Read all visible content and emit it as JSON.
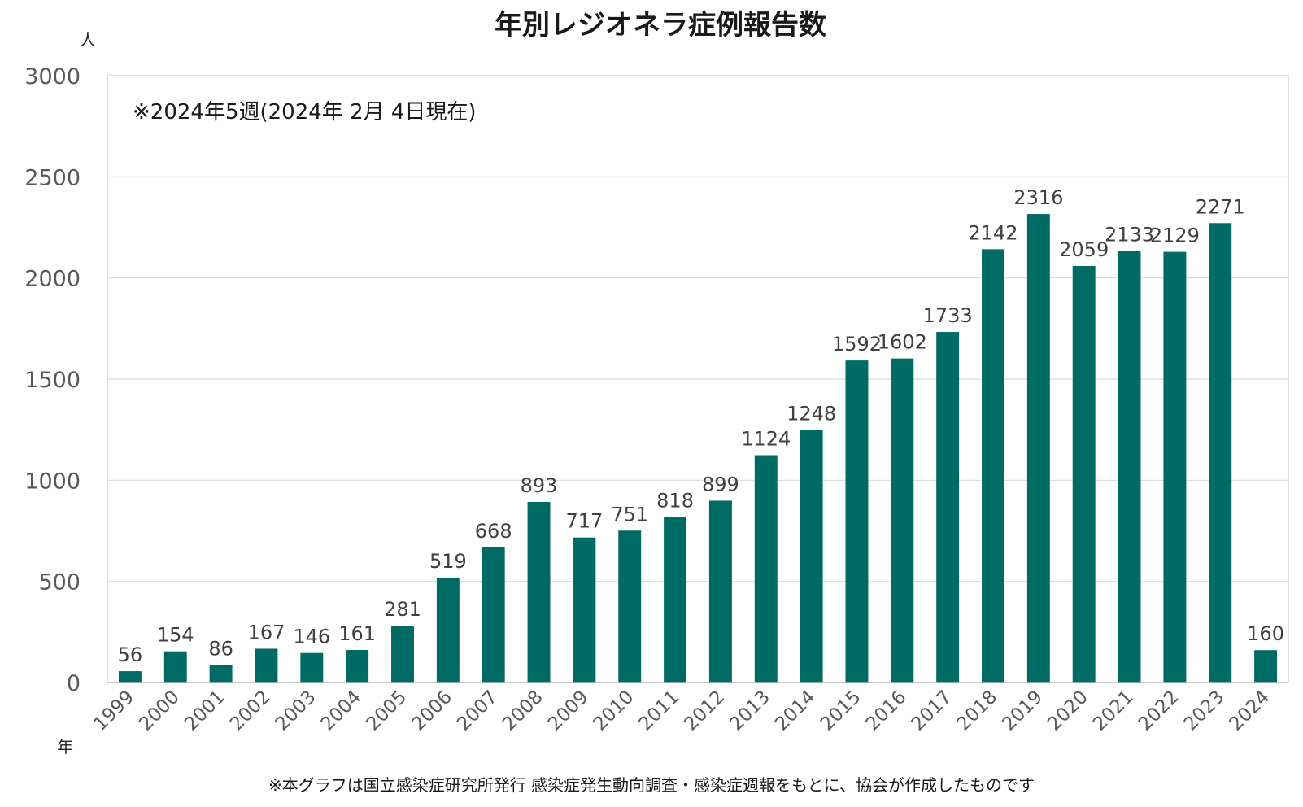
{
  "chart_data": {
    "type": "bar",
    "title": "年別レジオネラ症例報告数",
    "ylabel": "人",
    "xlabel": "年",
    "ylim": [
      0,
      3000
    ],
    "yticks": [
      0,
      500,
      1000,
      1500,
      2000,
      2500,
      3000
    ],
    "grid": true,
    "bar_color": "#006A64",
    "categories": [
      "1999",
      "2000",
      "2001",
      "2002",
      "2003",
      "2004",
      "2005",
      "2006",
      "2007",
      "2008",
      "2009",
      "2010",
      "2011",
      "2012",
      "2013",
      "2014",
      "2015",
      "2016",
      "2017",
      "2018",
      "2019",
      "2020",
      "2021",
      "2022",
      "2023",
      "2024"
    ],
    "values": [
      56,
      154,
      86,
      167,
      146,
      161,
      281,
      519,
      668,
      893,
      717,
      751,
      818,
      899,
      1124,
      1248,
      1592,
      1602,
      1733,
      2142,
      2316,
      2059,
      2133,
      2129,
      2271,
      160
    ],
    "annotation": "※2024年5週(2024年 2月 4日現在)",
    "footnote": "※本グラフは国立感染症研究所発行 感染症発生動向調査・感染症週報をもとに、協会が作成したものです"
  }
}
